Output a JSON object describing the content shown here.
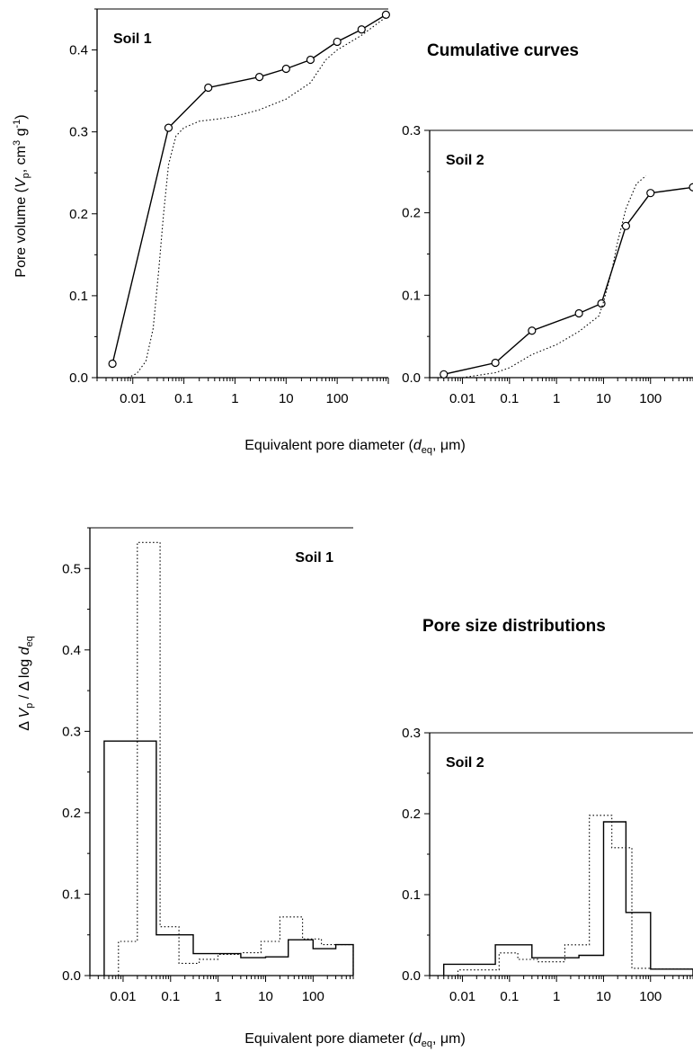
{
  "titles": {
    "cumulative": "Cumulative curves",
    "distribution": "Pore size distributions"
  },
  "axis_labels": {
    "cumulative_y": [
      "Pore volume (",
      "V",
      "p",
      ", cm",
      "3",
      " g",
      "-1",
      ")"
    ],
    "distribution_y": [
      "Δ ",
      "V",
      "p",
      " / Δ log ",
      "d",
      "eq"
    ],
    "x": [
      "Equivalent pore diameter (",
      "d",
      "eq",
      ", μm)"
    ]
  },
  "x_tick_labels": [
    "0.01",
    "0.1",
    "1",
    "10",
    "100"
  ],
  "chart_data": [
    {
      "type": "line",
      "label": "Soil 1",
      "xlim": [
        0.002,
        1000
      ],
      "xscale": "log",
      "ylim": [
        0,
        0.45
      ],
      "yticks": [
        0.0,
        0.1,
        0.2,
        0.3,
        0.4
      ],
      "series": [
        {
          "style": "solid-with-circles",
          "x": [
            0.004,
            0.05,
            0.3,
            3,
            10,
            30,
            100,
            300,
            900
          ],
          "y": [
            0.017,
            0.305,
            0.354,
            0.367,
            0.377,
            0.388,
            0.41,
            0.425,
            0.443
          ]
        },
        {
          "style": "dotted",
          "x": [
            0.008,
            0.012,
            0.018,
            0.025,
            0.032,
            0.04,
            0.05,
            0.07,
            0.1,
            0.2,
            0.5,
            1,
            3,
            10,
            30,
            60,
            100,
            300,
            900
          ],
          "y": [
            0.0,
            0.005,
            0.02,
            0.06,
            0.13,
            0.2,
            0.26,
            0.295,
            0.305,
            0.313,
            0.316,
            0.319,
            0.327,
            0.34,
            0.36,
            0.388,
            0.4,
            0.418,
            0.44
          ]
        }
      ]
    },
    {
      "type": "line",
      "label": "Soil 2",
      "xlim": [
        0.002,
        800
      ],
      "xscale": "log",
      "ylim": [
        0,
        0.3
      ],
      "yticks": [
        0.0,
        0.1,
        0.2,
        0.3
      ],
      "series": [
        {
          "style": "solid-with-circles",
          "x": [
            0.004,
            0.05,
            0.3,
            3,
            9,
            30,
            100,
            800
          ],
          "y": [
            0.004,
            0.018,
            0.057,
            0.078,
            0.09,
            0.184,
            0.224,
            0.231
          ]
        },
        {
          "style": "dotted",
          "x": [
            0.01,
            0.05,
            0.1,
            0.3,
            1,
            3,
            8,
            10,
            15,
            20,
            30,
            50,
            80
          ],
          "y": [
            0.0,
            0.006,
            0.012,
            0.028,
            0.04,
            0.056,
            0.075,
            0.092,
            0.13,
            0.165,
            0.205,
            0.235,
            0.245
          ]
        }
      ]
    },
    {
      "type": "histogram",
      "label": "Soil 1",
      "xlim": [
        0.002,
        700
      ],
      "xscale": "log",
      "ylim": [
        0,
        0.55
      ],
      "yticks": [
        0.0,
        0.1,
        0.2,
        0.3,
        0.4,
        0.5
      ],
      "series": [
        {
          "style": "solid",
          "edges": [
            0.004,
            0.05,
            0.3,
            3,
            10,
            30,
            100,
            300,
            700
          ],
          "values": [
            0.288,
            0.05,
            0.027,
            0.022,
            0.023,
            0.044,
            0.033,
            0.038
          ]
        },
        {
          "style": "dotted",
          "edges": [
            0.008,
            0.02,
            0.06,
            0.15,
            0.4,
            1,
            3,
            8,
            20,
            60,
            150,
            700
          ],
          "values": [
            0.042,
            0.532,
            0.06,
            0.015,
            0.02,
            0.026,
            0.028,
            0.042,
            0.072,
            0.045,
            0.038
          ]
        }
      ]
    },
    {
      "type": "histogram",
      "label": "Soil 2",
      "xlim": [
        0.002,
        800
      ],
      "xscale": "log",
      "ylim": [
        0,
        0.3
      ],
      "yticks": [
        0.0,
        0.1,
        0.2,
        0.3
      ],
      "series": [
        {
          "style": "solid",
          "edges": [
            0.004,
            0.05,
            0.3,
            3,
            10,
            30,
            100,
            800
          ],
          "values": [
            0.014,
            0.038,
            0.022,
            0.025,
            0.19,
            0.078,
            0.008
          ]
        },
        {
          "style": "dotted",
          "edges": [
            0.008,
            0.06,
            0.15,
            0.4,
            1.5,
            5,
            15,
            40,
            100,
            800
          ],
          "values": [
            0.007,
            0.028,
            0.02,
            0.017,
            0.038,
            0.198,
            0.158,
            0.009,
            0.008
          ]
        }
      ]
    }
  ]
}
